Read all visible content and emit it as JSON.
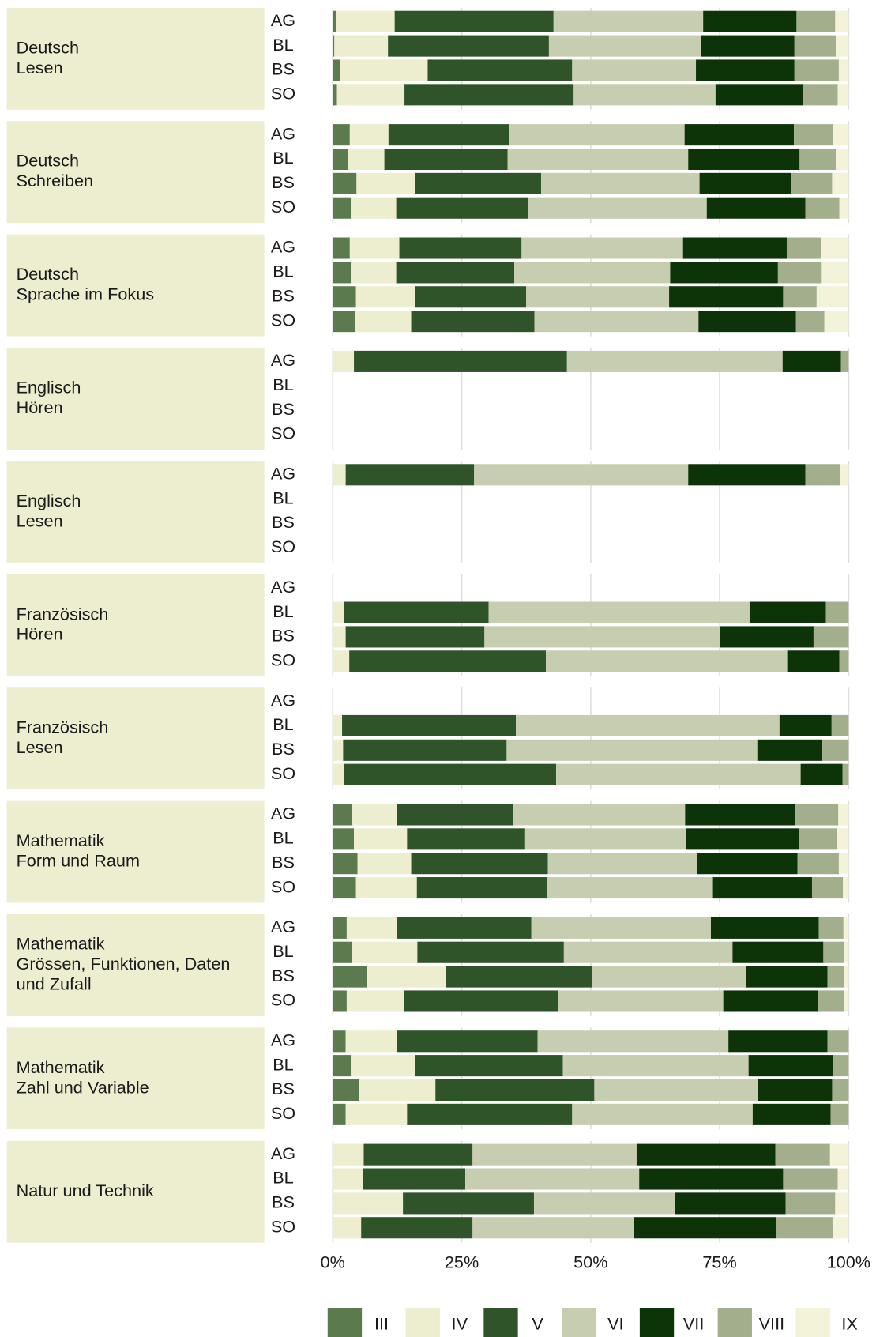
{
  "chart_data": {
    "type": "bar",
    "orientation": "horizontal",
    "stacked": true,
    "grid": true,
    "legend": "bottom",
    "xlim": [
      0,
      100
    ],
    "xticks": [
      {
        "value": 0,
        "label": "0%"
      },
      {
        "value": 25,
        "label": "25%"
      },
      {
        "value": 50,
        "label": "50%"
      },
      {
        "value": 75,
        "label": "75%"
      },
      {
        "value": 100,
        "label": "100%"
      }
    ],
    "series": [
      {
        "name": "III",
        "color": "#5b7b4f"
      },
      {
        "name": "IV",
        "color": "#ededcf"
      },
      {
        "name": "V",
        "color": "#2f5429"
      },
      {
        "name": "VI",
        "color": "#c7cdb0"
      },
      {
        "name": "VII",
        "color": "#0d3309"
      },
      {
        "name": "VIII",
        "color": "#a2ae8c"
      },
      {
        "name": "IX",
        "color": "#f3f3da"
      }
    ],
    "facets": [
      {
        "title": [
          "Deutsch",
          "Lesen"
        ],
        "categories": [
          "AG",
          "BL",
          "BS",
          "SO"
        ],
        "values": [
          [
            0.7,
            11.3,
            30.8,
            29,
            18.1,
            7.5,
            2.6
          ],
          [
            0.3,
            10.4,
            31.2,
            29.5,
            18.1,
            8,
            2.5
          ],
          [
            1.5,
            16.9,
            28,
            24,
            19.1,
            8.6,
            1.9
          ],
          [
            0.8,
            13.1,
            32.8,
            27.5,
            16.9,
            6.8,
            2.1
          ]
        ]
      },
      {
        "title": [
          "Deutsch",
          "Schreiben"
        ],
        "categories": [
          "AG",
          "BL",
          "BS",
          "SO"
        ],
        "values": [
          [
            3.3,
            7.5,
            23.4,
            34,
            21.2,
            7.6,
            3
          ],
          [
            3,
            7,
            23.9,
            35,
            21.6,
            7,
            2.5
          ],
          [
            4.6,
            11.4,
            24.4,
            30.7,
            17.7,
            8,
            3.2
          ],
          [
            3.5,
            8.8,
            25.5,
            34.7,
            19.1,
            6.6,
            1.8
          ]
        ]
      },
      {
        "title": [
          "Deutsch",
          "Sprache im Fokus"
        ],
        "categories": [
          "AG",
          "BL",
          "BS",
          "SO"
        ],
        "values": [
          [
            3.3,
            9.6,
            23.7,
            31.3,
            20.1,
            6.6,
            5.4
          ],
          [
            3.5,
            8.8,
            22.9,
            30.2,
            20.9,
            8.5,
            5.2
          ],
          [
            4.5,
            11.4,
            21.6,
            27.7,
            22.1,
            6.5,
            6.2
          ],
          [
            4.3,
            10.9,
            23.9,
            31.8,
            18.9,
            5.5,
            4.7
          ]
        ]
      },
      {
        "title": [
          "Englisch",
          "Hören"
        ],
        "categories": [
          "AG",
          "BL",
          "BS",
          "SO"
        ],
        "values": [
          [
            0,
            4.1,
            41.3,
            41.8,
            11.3,
            1.5,
            0
          ],
          null,
          null,
          null
        ]
      },
      {
        "title": [
          "Englisch",
          "Lesen"
        ],
        "categories": [
          "AG",
          "BL",
          "BS",
          "SO"
        ],
        "values": [
          [
            0,
            2.5,
            24.9,
            41.5,
            22.7,
            6.8,
            1.6
          ],
          null,
          null,
          null
        ]
      },
      {
        "title": [
          "Französisch",
          "Hören"
        ],
        "categories": [
          "AG",
          "BL",
          "BS",
          "SO"
        ],
        "values": [
          null,
          [
            0,
            2.2,
            28,
            50.6,
            14.8,
            4.4,
            0
          ],
          [
            0,
            2.5,
            26.9,
            45.6,
            18.2,
            6.8,
            0
          ],
          [
            0,
            3.2,
            38.1,
            46.8,
            10.1,
            1.8,
            0
          ]
        ]
      },
      {
        "title": [
          "Französisch",
          "Lesen"
        ],
        "categories": [
          "AG",
          "BL",
          "BS",
          "SO"
        ],
        "values": [
          null,
          [
            0,
            1.8,
            33.7,
            51.1,
            10.1,
            3.3,
            0
          ],
          [
            0,
            2,
            31.7,
            48.6,
            12.6,
            5.1,
            0
          ],
          [
            0,
            2.2,
            41.1,
            47.4,
            8.1,
            1.2,
            0
          ]
        ]
      },
      {
        "title": [
          "Mathematik",
          "Form und Raum"
        ],
        "categories": [
          "AG",
          "BL",
          "BS",
          "SO"
        ],
        "values": [
          [
            3.8,
            8.6,
            22.6,
            33.3,
            21.4,
            8.3,
            2
          ],
          [
            4.1,
            10.3,
            22.9,
            31.2,
            21.9,
            7.3,
            2.3
          ],
          [
            4.8,
            10.4,
            26.5,
            29,
            19.4,
            8,
            1.9
          ],
          [
            4.5,
            11.8,
            25.2,
            32.2,
            19.2,
            6,
            1.1
          ]
        ]
      },
      {
        "title": [
          "Mathematik",
          "Grössen, Funktionen, Daten",
          "und Zufall"
        ],
        "categories": [
          "AG",
          "BL",
          "BS",
          "SO"
        ],
        "values": [
          [
            2.7,
            9.8,
            26,
            34.8,
            20.9,
            4.8,
            1
          ],
          [
            3.8,
            12.6,
            28.4,
            32.7,
            17.6,
            4.1,
            0.8
          ],
          [
            6.6,
            15.4,
            28.2,
            29.9,
            15.8,
            3.3,
            0.8
          ],
          [
            2.7,
            11.1,
            29.9,
            32,
            18.4,
            5,
            0.9
          ]
        ]
      },
      {
        "title": [
          "Mathematik",
          "Zahl und Variable"
        ],
        "categories": [
          "AG",
          "BL",
          "BS",
          "SO"
        ],
        "values": [
          [
            2.5,
            10,
            27.2,
            37,
            19.2,
            4.1,
            0
          ],
          [
            3.5,
            12.4,
            28.7,
            36,
            16.3,
            3.1,
            0
          ],
          [
            5.1,
            14.8,
            30.8,
            31.7,
            14.4,
            3.2,
            0
          ],
          [
            2.5,
            11.9,
            32,
            35,
            15.1,
            3.5,
            0
          ]
        ]
      },
      {
        "title": [
          "Natur und Technik"
        ],
        "categories": [
          "AG",
          "BL",
          "BS",
          "SO"
        ],
        "values": [
          [
            0,
            6,
            21.1,
            31.8,
            26.9,
            10.6,
            3.6
          ],
          [
            0,
            5.8,
            19.9,
            33.7,
            27.9,
            10.6,
            2.1
          ],
          [
            0,
            13.6,
            25.4,
            27.4,
            21.4,
            9.6,
            2.6
          ],
          [
            0,
            5.5,
            21.6,
            31.2,
            27.7,
            10.9,
            3.1
          ]
        ]
      }
    ]
  }
}
